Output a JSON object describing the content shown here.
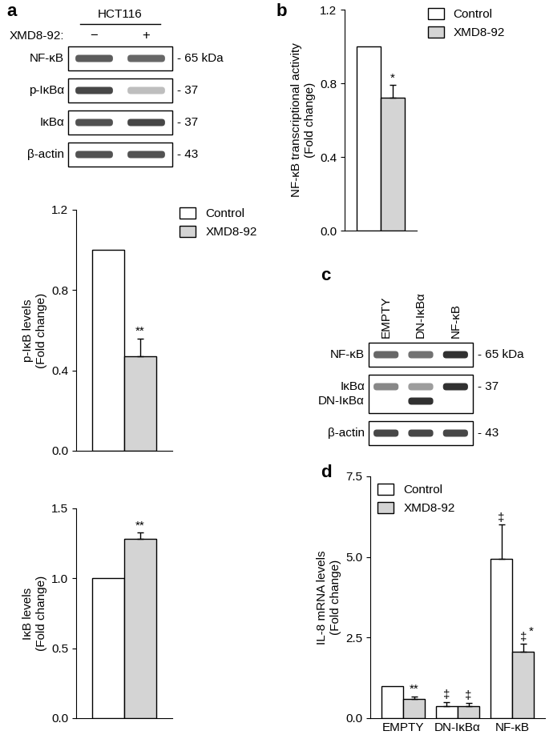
{
  "blots": [
    {
      "panel_label": "a",
      "cell_line": "HCT116",
      "treatment_label": "XMD8-92:",
      "lanes": [
        "−",
        "+"
      ],
      "rows": [
        {
          "labels": [
            "NF-κB"
          ],
          "kda": "- 65 kDa",
          "bands": [
            [
              0.75,
              0.7
            ]
          ]
        },
        {
          "labels": [
            "p-IκBα"
          ],
          "kda": "- 37",
          "bands": [
            [
              0.85,
              0.3
            ]
          ]
        },
        {
          "labels": [
            "IκBα"
          ],
          "kda": "- 37",
          "bands": [
            [
              0.8,
              0.85
            ]
          ]
        },
        {
          "labels": [
            "β-actin"
          ],
          "kda": "- 43",
          "bands": [
            [
              0.8,
              0.8
            ]
          ]
        }
      ]
    },
    {
      "panel_label": "c",
      "lanes": [
        "EMPTY",
        "DN-IκBα",
        "NF-κB"
      ],
      "rows": [
        {
          "labels": [
            "NF-κB"
          ],
          "kda": "- 65 kDa",
          "bands": [
            [
              0.7,
              0.65,
              0.95
            ]
          ]
        },
        {
          "labels": [
            "IκBα",
            "DN-IκBα"
          ],
          "kda": "- 37",
          "bands": [
            [
              0.55,
              0.45,
              0.95
            ],
            [
              0,
              0.95,
              0
            ]
          ]
        },
        {
          "labels": [
            "β-actin"
          ],
          "kda": "- 43",
          "bands": [
            [
              0.85,
              0.85,
              0.85
            ]
          ]
        }
      ]
    }
  ],
  "chart_data": [
    {
      "type": "bar",
      "y_label": "p-IκB levels\n(Fold change)",
      "categories": [
        null
      ],
      "tick_labels": "y",
      "ylim": [
        0,
        1.2
      ],
      "yticks": [
        {
          "value": 0,
          "label": "0.0"
        },
        {
          "value": 0.4,
          "label": "0.4"
        },
        {
          "value": 0.8,
          "label": "0.8"
        },
        {
          "value": 1.2,
          "label": "1.2"
        }
      ],
      "legend": "upper left",
      "series": [
        {
          "name": "Control",
          "color": "#ffffff",
          "values": [
            1.0
          ],
          "errors": [
            null
          ],
          "marks": [
            null
          ]
        },
        {
          "name": "XMD8-92",
          "color": "#d4d4d4",
          "values": [
            0.47
          ],
          "errors": [
            0.09
          ],
          "marks": [
            [
              "**"
            ]
          ]
        }
      ]
    },
    {
      "type": "bar",
      "y_label": "IκB levels\n(Fold change)",
      "categories": [
        null
      ],
      "tick_labels": "y",
      "ylim": [
        0,
        1.5
      ],
      "yticks": [
        {
          "value": 0,
          "label": "0.0"
        },
        {
          "value": 0.5,
          "label": "0.5"
        },
        {
          "value": 1.0,
          "label": "1.0"
        },
        {
          "value": 1.5,
          "label": "1.5"
        }
      ],
      "series": [
        {
          "name": "Control",
          "color": "#ffffff",
          "values": [
            1.0
          ],
          "errors": [
            null
          ],
          "marks": [
            null
          ]
        },
        {
          "name": "XMD8-92",
          "color": "#d4d4d4",
          "values": [
            1.28
          ],
          "errors": [
            0.05
          ],
          "marks": [
            [
              "**"
            ]
          ]
        }
      ]
    },
    {
      "type": "bar",
      "panel_label": "b",
      "y_label": "NF-κB transcriptional activity\n(Fold change)",
      "categories": [
        null
      ],
      "tick_labels": "y",
      "ylim": [
        0,
        1.2
      ],
      "yticks": [
        {
          "value": 0,
          "label": "0.0"
        },
        {
          "value": 0.4,
          "label": "0.4"
        },
        {
          "value": 0.8,
          "label": "0.8"
        },
        {
          "value": 1.2,
          "label": "1.2"
        }
      ],
      "legend": "upper left",
      "series": [
        {
          "name": "Control",
          "color": "#ffffff",
          "values": [
            1.0
          ],
          "errors": [
            null
          ],
          "marks": [
            null
          ]
        },
        {
          "name": "XMD8-92",
          "color": "#d4d4d4",
          "values": [
            0.72
          ],
          "errors": [
            0.07
          ],
          "marks": [
            [
              "*"
            ]
          ]
        }
      ]
    },
    {
      "type": "bar",
      "panel_label": "d",
      "y_label": "IL-8 mRNA levels\n(Fold change)",
      "categories": [
        "EMPTY",
        "DN-IκBα",
        "NF-κB"
      ],
      "ylim": [
        0,
        7.5
      ],
      "yticks": [
        {
          "value": 0,
          "label": "0.0"
        },
        {
          "value": 2.5,
          "label": "2.5"
        },
        {
          "value": 5.0,
          "label": "5.0"
        },
        {
          "value": 7.5,
          "label": "7.5"
        }
      ],
      "legend": "upper left",
      "series": [
        {
          "name": "Control",
          "color": "#ffffff",
          "values": [
            1.0,
            0.38,
            4.95
          ],
          "errors": [
            null,
            0.12,
            1.05
          ],
          "marks": [
            null,
            [
              "‡"
            ],
            [
              "‡"
            ]
          ]
        },
        {
          "name": "XMD8-92",
          "color": "#d4d4d4",
          "values": [
            0.6,
            0.38,
            2.05
          ],
          "errors": [
            0.08,
            0.1,
            0.25
          ],
          "marks": [
            [
              "**"
            ],
            [
              "‡"
            ],
            [
              "‡",
              "*"
            ]
          ]
        }
      ]
    }
  ]
}
